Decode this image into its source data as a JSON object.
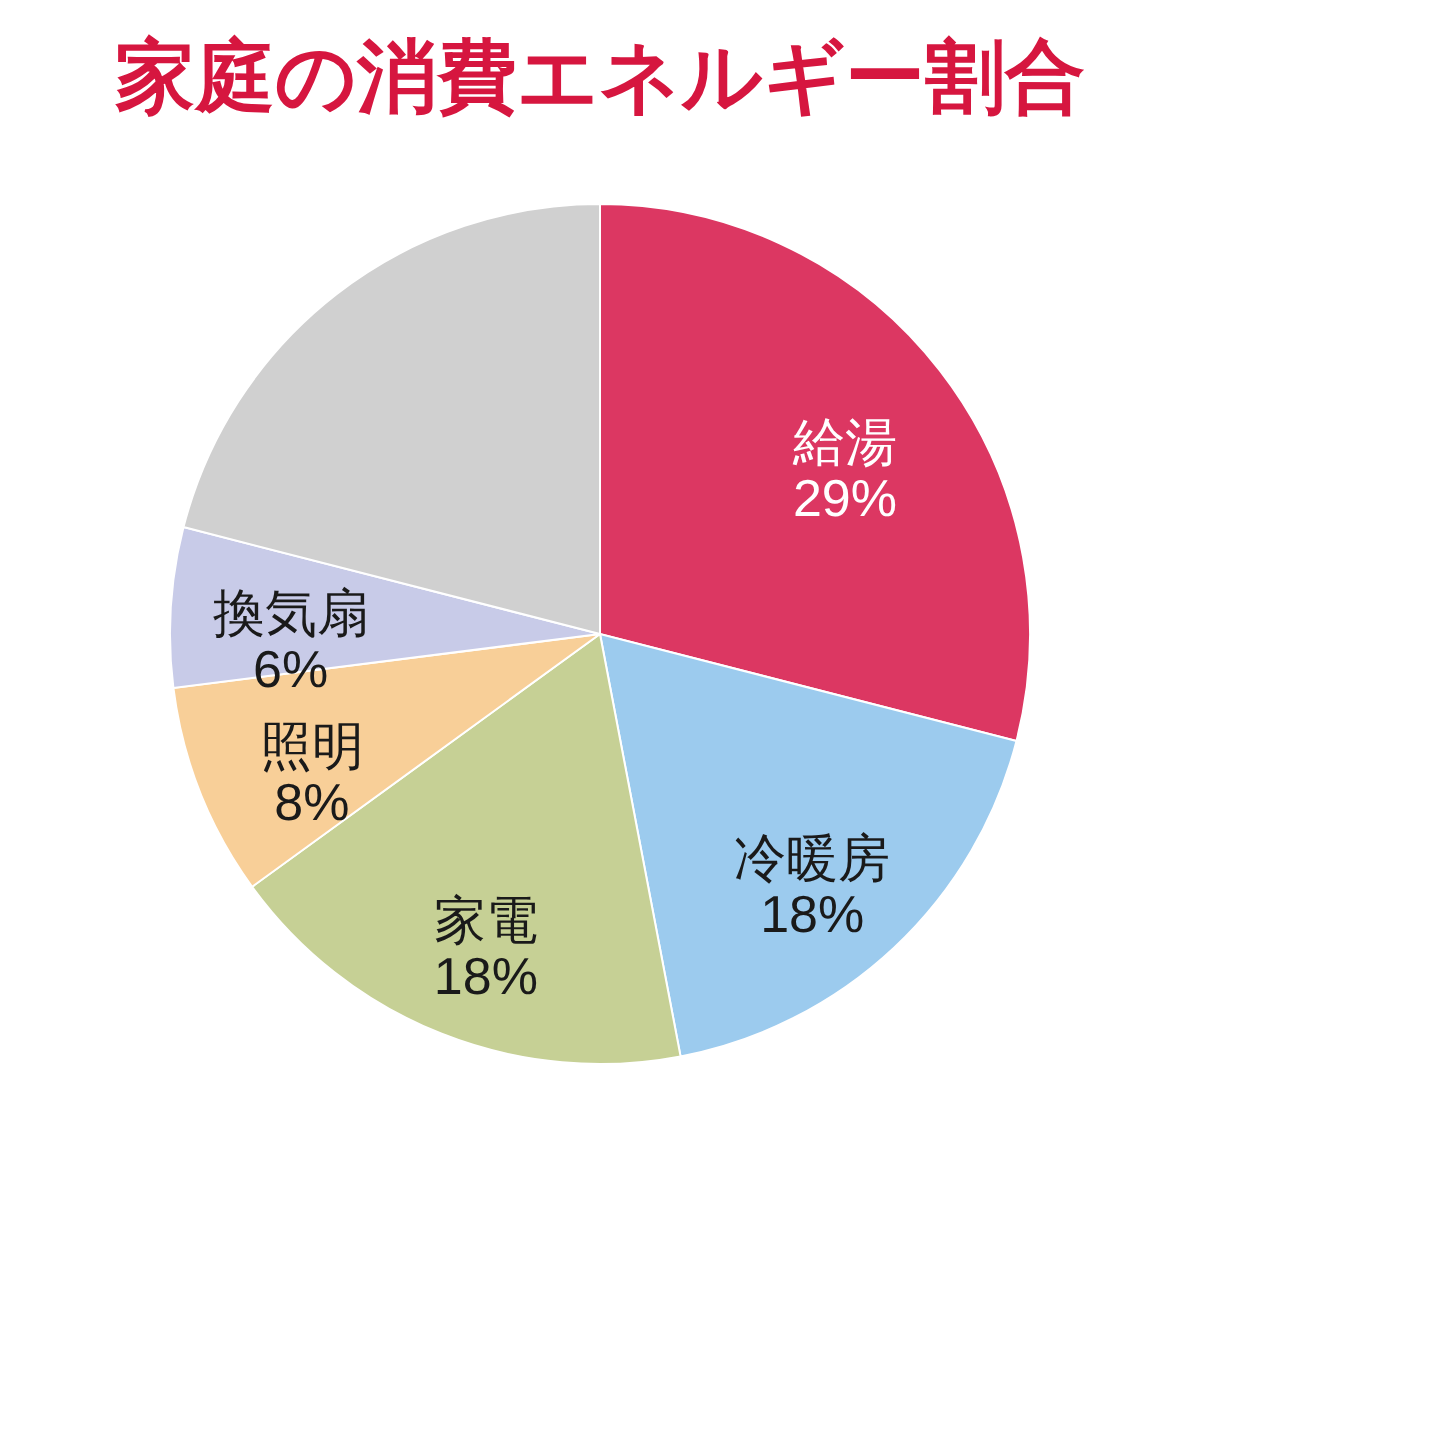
{
  "chart_data": {
    "type": "pie",
    "title": "家庭の消費エネルギー割合",
    "categories": [
      "給湯",
      "冷暖房",
      "家電",
      "照明",
      "換気扇",
      null
    ],
    "values": [
      29,
      18,
      18,
      8,
      6,
      21
    ],
    "value_labels": [
      "29%",
      "18%",
      "18%",
      "8%",
      "6%",
      null
    ],
    "colors": [
      "#dc3762",
      "#9ccbee",
      "#c6d095",
      "#f8cf98",
      "#c8cbe8",
      "#d0d0d0"
    ],
    "legend": false
  }
}
